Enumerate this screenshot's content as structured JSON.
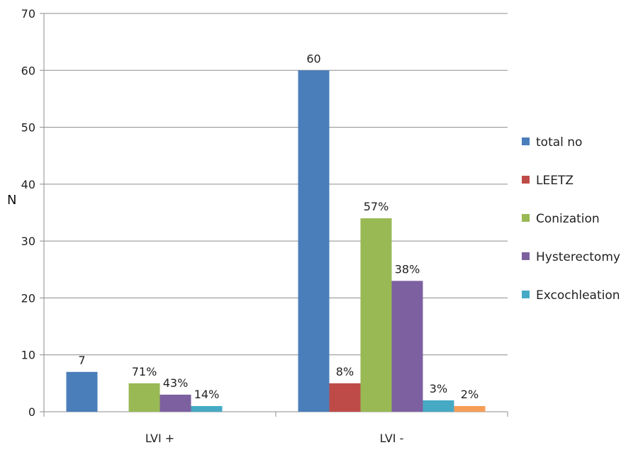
{
  "chart_data": {
    "type": "bar",
    "ylabel": "N",
    "ylim": [
      0,
      70
    ],
    "yticks": [
      "0",
      "10",
      "20",
      "30",
      "40",
      "50",
      "60",
      "70"
    ],
    "grid": true,
    "legend_position": "right",
    "categories": [
      "LVI +",
      "LVI -"
    ],
    "series": [
      {
        "name": "total no",
        "color": "#4a7ebb",
        "values": [
          7,
          60
        ],
        "labels": [
          "7",
          "60"
        ]
      },
      {
        "name": "LEETZ",
        "color": "#be4b48",
        "values": [
          0,
          5
        ],
        "labels": [
          "",
          "8%"
        ]
      },
      {
        "name": "Conization",
        "color": "#98b954",
        "values": [
          5,
          34
        ],
        "labels": [
          "71%",
          "57%"
        ]
      },
      {
        "name": "Hysterectomy",
        "color": "#7d60a0",
        "values": [
          3,
          23
        ],
        "labels": [
          "43%",
          "38%"
        ]
      },
      {
        "name": "Excochleation",
        "color": "#46aac5",
        "values": [
          1,
          2
        ],
        "labels": [
          "14%",
          "3%"
        ]
      },
      {
        "name": "",
        "color": "#f59d56",
        "values": [
          0,
          1
        ],
        "labels": [
          "",
          "2%"
        ]
      }
    ]
  }
}
